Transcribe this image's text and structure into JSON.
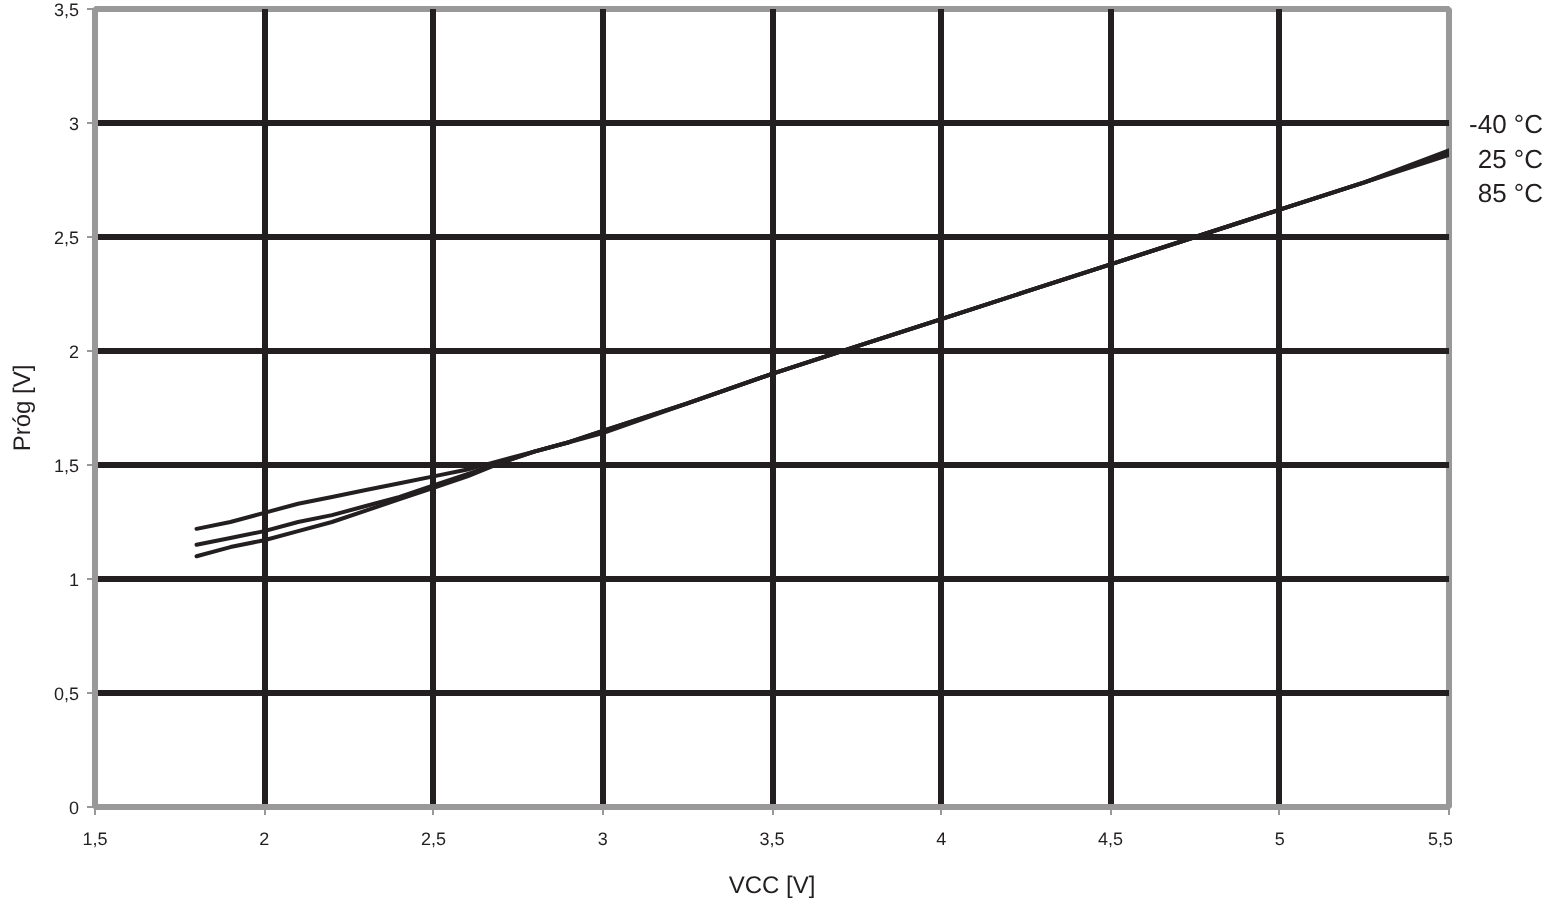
{
  "chart_data": {
    "type": "line",
    "xlabel": "VCC [V]",
    "ylabel": "Próg [V]",
    "x": [
      1.8,
      1.9,
      2.0,
      2.1,
      2.2,
      2.3,
      2.4,
      2.5,
      2.6,
      2.7,
      2.8,
      2.9,
      3.0,
      3.25,
      3.5,
      3.75,
      4.0,
      4.25,
      4.5,
      4.75,
      5.0,
      5.25,
      5.5
    ],
    "series": [
      {
        "name": "-40 °C",
        "color": "#231f20",
        "values": [
          1.22,
          1.25,
          1.29,
          1.33,
          1.36,
          1.39,
          1.42,
          1.45,
          1.48,
          1.52,
          1.56,
          1.6,
          1.65,
          1.77,
          1.9,
          2.02,
          2.14,
          2.26,
          2.38,
          2.5,
          2.62,
          2.74,
          2.88
        ]
      },
      {
        "name": "25 °C",
        "color": "#231f20",
        "values": [
          1.15,
          1.18,
          1.21,
          1.25,
          1.28,
          1.32,
          1.36,
          1.41,
          1.46,
          1.51,
          1.56,
          1.6,
          1.65,
          1.77,
          1.9,
          2.02,
          2.14,
          2.26,
          2.38,
          2.5,
          2.62,
          2.74,
          2.87
        ]
      },
      {
        "name": "85 °C",
        "color": "#231f20",
        "values": [
          1.1,
          1.14,
          1.17,
          1.21,
          1.25,
          1.3,
          1.35,
          1.4,
          1.45,
          1.51,
          1.56,
          1.6,
          1.64,
          1.77,
          1.9,
          2.02,
          2.14,
          2.26,
          2.38,
          2.5,
          2.62,
          2.74,
          2.86
        ]
      }
    ],
    "xlim": [
      1.5,
      5.5
    ],
    "ylim": [
      0,
      3.5
    ],
    "xticks": [
      {
        "value": 1.5,
        "label": "1,5"
      },
      2,
      {
        "value": 2.5,
        "label": "2,5"
      },
      3,
      {
        "value": 3.5,
        "label": "3,5"
      },
      4,
      {
        "value": 4.5,
        "label": "4,5"
      },
      5,
      {
        "value": 5.5,
        "label": "5,5"
      }
    ],
    "yticks": [
      0,
      {
        "value": 0.5,
        "label": "0,5"
      },
      1,
      {
        "value": 1.5,
        "label": "1,5"
      },
      2,
      {
        "value": 2.5,
        "label": "2,5"
      },
      3,
      {
        "value": 3.5,
        "label": "3,5"
      }
    ],
    "grid": true,
    "line_style": "solid"
  }
}
